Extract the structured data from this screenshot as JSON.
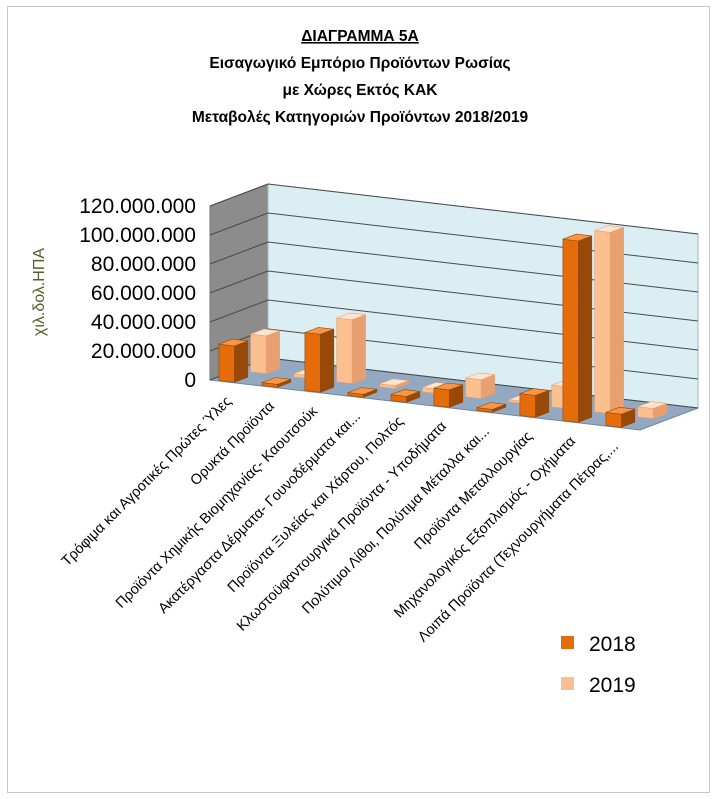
{
  "chart_data": {
    "type": "bar",
    "title_lines": [
      "ΔΙΑΓΡΑΜΜΑ 5Α",
      "Εισαγωγικό Εμπόριο Προϊόντων Ρωσίας",
      "με Χώρες Εκτός ΚΑΚ",
      "Μεταβολές Κατηγοριών Προϊόντων 2018/2019"
    ],
    "ylabel": "χιλ.δολ.ΗΠΑ",
    "xlabel": "",
    "ylim": [
      0,
      120000000
    ],
    "y_ticks": [
      {
        "value": 0,
        "label": "0"
      },
      {
        "value": 20000000,
        "label": "20.000.000"
      },
      {
        "value": 40000000,
        "label": "40.000.000"
      },
      {
        "value": 60000000,
        "label": "60.000.000"
      },
      {
        "value": 80000000,
        "label": "80.000.000"
      },
      {
        "value": 100000000,
        "label": "100.000.000"
      },
      {
        "value": 120000000,
        "label": "120.000.000"
      }
    ],
    "categories": [
      "Τρόφιμα και Αγροτικές Πρώτες Ύλες",
      "Ορυκτά Προϊόντα",
      "Προϊόντα Χημικής Βιομηχανίας- Καουτσούκ",
      "Ακατέργαστα Δέρματα- Γουνοδέρματα και...",
      "Προϊόντα Ξυλείας και Χάρτου, Πολτός",
      "Κλωστοϋφαντουργικά Προϊόντα - Υποδήματα",
      "Πολύτιμοι Λίθοι, Πολύτιμα Μέταλλα και...",
      "Προϊόντα Μεταλλουργίας",
      "Μηχανολογικός Εξοπλισμός - Οχήματα",
      "Λοιπά Προϊόντα (Τεχνουργήματα Πέτρας,..."
    ],
    "series": [
      {
        "name": "2018",
        "values": [
          25000000,
          2000000,
          40000000,
          2000000,
          4000000,
          12000000,
          2000000,
          15000000,
          125000000,
          9000000
        ]
      },
      {
        "name": "2019",
        "values": [
          26000000,
          2000000,
          44000000,
          2000000,
          3000000,
          13000000,
          1500000,
          15000000,
          125000000,
          7000000
        ]
      }
    ],
    "grid": true,
    "legend_position": "bottom-right",
    "colors": {
      "2018_front": "#e46c0a",
      "2018_side": "#984807",
      "2018_top": "#f79646",
      "2019_front": "#fac090",
      "2019_side": "#e8a070",
      "2019_top": "#fde4cf",
      "wall": "#dbeef4",
      "side_wall": "#8c8c8c",
      "floor": "#93a9c1"
    }
  }
}
